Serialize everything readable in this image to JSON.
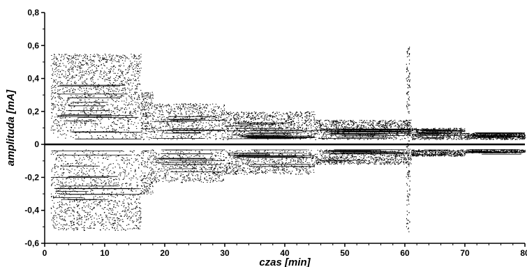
{
  "chart_data": {
    "type": "scatter",
    "title": "",
    "xlabel": "czas [min]",
    "ylabel": "amplituda [mA]",
    "xlim": [
      0,
      80
    ],
    "ylim": [
      -0.6,
      0.8
    ],
    "x_ticks": [
      "0",
      "10",
      "20",
      "30",
      "40",
      "50",
      "60",
      "70",
      "80"
    ],
    "y_ticks": [
      "-0,6",
      "-0,4",
      "-0,2",
      "0",
      "0,2",
      "0,4",
      "0,6",
      "0,8"
    ],
    "zero_line": true,
    "grid": false,
    "legend": "none",
    "colors": {
      "points": "#000000",
      "axis": "#000000",
      "background": "#ffffff"
    },
    "series": [
      {
        "description_envelope": [
          {
            "x_from": 1.0,
            "x_to": 16.0,
            "y_pos_max": 0.55,
            "y_neg_min": -0.52
          },
          {
            "x_from": 16.0,
            "x_to": 18.0,
            "y_pos_max": 0.32,
            "y_neg_min": -0.3
          },
          {
            "x_from": 18.0,
            "x_to": 30.0,
            "y_pos_max": 0.25,
            "y_neg_min": -0.23
          },
          {
            "x_from": 30.0,
            "x_to": 45.0,
            "y_pos_max": 0.2,
            "y_neg_min": -0.18
          },
          {
            "x_from": 45.0,
            "x_to": 61.0,
            "y_pos_max": 0.15,
            "y_neg_min": -0.12
          },
          {
            "x_from": 61.0,
            "x_to": 70.0,
            "y_pos_max": 0.1,
            "y_neg_min": -0.07
          },
          {
            "x_from": 70.0,
            "x_to": 80.0,
            "y_pos_max": 0.07,
            "y_neg_min": -0.05
          }
        ],
        "spike": {
          "x": 60.5,
          "y_max": 0.6,
          "y_min": -0.53
        }
      }
    ]
  }
}
